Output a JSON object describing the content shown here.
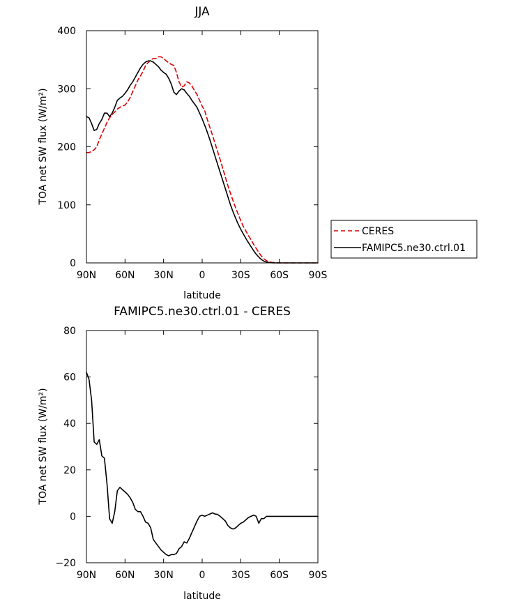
{
  "chart_data": [
    {
      "type": "line",
      "title": "JJA",
      "xlabel": "latitude",
      "ylabel": "TOA net SW flux (W/m²)",
      "xlim": [
        90,
        -90
      ],
      "ylim": [
        0,
        400
      ],
      "xticks": [
        90,
        60,
        30,
        0,
        -30,
        -60,
        -90
      ],
      "xtick_labels": [
        "90N",
        "60N",
        "30N",
        "0",
        "30S",
        "60S",
        "90S"
      ],
      "yticks": [
        0,
        100,
        200,
        300,
        400
      ],
      "ytick_labels": [
        "0",
        "100",
        "200",
        "300",
        "400"
      ],
      "grid": false,
      "legend": "right",
      "series": [
        {
          "name": "CERES",
          "color": "#dd0000",
          "style": "dashed",
          "x": [
            90,
            88,
            86,
            84,
            82,
            80,
            78,
            76,
            74,
            72,
            70,
            68,
            66,
            64,
            62,
            60,
            58,
            56,
            54,
            52,
            50,
            48,
            46,
            44,
            42,
            40,
            38,
            36,
            34,
            32,
            30,
            28,
            26,
            24,
            22,
            20,
            18,
            16,
            14,
            12,
            10,
            8,
            6,
            4,
            2,
            0,
            -2,
            -4,
            -6,
            -8,
            -10,
            -12,
            -14,
            -16,
            -18,
            -20,
            -22,
            -24,
            -26,
            -28,
            -30,
            -32,
            -34,
            -36,
            -38,
            -40,
            -42,
            -44,
            -46,
            -48,
            -50,
            -52,
            -54,
            -56,
            -58,
            -60,
            -62,
            -64,
            -66,
            -68,
            -70,
            -72,
            -74,
            -76,
            -78,
            -80,
            -82,
            -84,
            -86,
            -88,
            -90
          ],
          "y": [
            190,
            190,
            192,
            195,
            200,
            212,
            222,
            232,
            242,
            250,
            255,
            260,
            265,
            268,
            270,
            272,
            277,
            285,
            295,
            305,
            315,
            322,
            330,
            340,
            345,
            350,
            352,
            352,
            355,
            355,
            352,
            348,
            345,
            342,
            340,
            328,
            312,
            303,
            305,
            312,
            310,
            305,
            297,
            290,
            280,
            270,
            262,
            247,
            233,
            220,
            206,
            192,
            178,
            163,
            148,
            133,
            120,
            107,
            95,
            84,
            73,
            63,
            55,
            47,
            40,
            32,
            25,
            18,
            12,
            7,
            4,
            2,
            1,
            0.5,
            0.2,
            0,
            0,
            0,
            0,
            0,
            0,
            0,
            0,
            0,
            0,
            0,
            0,
            0,
            0,
            0,
            0
          ]
        },
        {
          "name": "FAMIPC5.ne30.ctrl.01",
          "color": "#000000",
          "style": "solid",
          "x": [
            90,
            88,
            86,
            84,
            82,
            80,
            78,
            76,
            74,
            72,
            70,
            68,
            66,
            64,
            62,
            60,
            58,
            56,
            54,
            52,
            50,
            48,
            46,
            44,
            42,
            40,
            38,
            36,
            34,
            32,
            30,
            28,
            26,
            24,
            22,
            20,
            18,
            16,
            14,
            12,
            10,
            8,
            6,
            4,
            2,
            0,
            -2,
            -4,
            -6,
            -8,
            -10,
            -12,
            -14,
            -16,
            -18,
            -20,
            -22,
            -24,
            -26,
            -28,
            -30,
            -32,
            -34,
            -36,
            -38,
            -40,
            -42,
            -44,
            -46,
            -48,
            -50,
            -52,
            -54,
            -56,
            -58,
            -60,
            -62,
            -64,
            -66,
            -68,
            -70,
            -72,
            -74,
            -76,
            -78,
            -80,
            -82,
            -84,
            -86,
            -88,
            -90
          ],
          "y": [
            252,
            250,
            240,
            228,
            230,
            240,
            247,
            258,
            258,
            252,
            258,
            268,
            280,
            284,
            287,
            292,
            298,
            306,
            312,
            320,
            328,
            336,
            342,
            346,
            348,
            348,
            346,
            342,
            338,
            332,
            328,
            325,
            318,
            308,
            294,
            290,
            296,
            300,
            298,
            292,
            287,
            280,
            274,
            268,
            258,
            248,
            237,
            225,
            212,
            198,
            184,
            170,
            156,
            142,
            128,
            114,
            100,
            88,
            77,
            67,
            58,
            50,
            42,
            35,
            28,
            21,
            15,
            10,
            6,
            3,
            1.5,
            0.5,
            0.2,
            0,
            0,
            0,
            0,
            0,
            0,
            0,
            0,
            0,
            0,
            0,
            0,
            0,
            0,
            0,
            0,
            0,
            0
          ]
        }
      ]
    },
    {
      "type": "line",
      "title": "FAMIPC5.ne30.ctrl.01 - CERES",
      "xlabel": "latitude",
      "ylabel": "TOA net SW flux (W/m²)",
      "xlim": [
        90,
        -90
      ],
      "ylim": [
        -20,
        80
      ],
      "xticks": [
        90,
        60,
        30,
        0,
        -30,
        -60,
        -90
      ],
      "xtick_labels": [
        "90N",
        "60N",
        "30N",
        "0",
        "30S",
        "60S",
        "90S"
      ],
      "yticks": [
        -20,
        0,
        20,
        40,
        60,
        80
      ],
      "ytick_labels": [
        "−20",
        "0",
        "20",
        "40",
        "60",
        "80"
      ],
      "grid": false,
      "series": [
        {
          "name": "FAMIPC5.ne30.ctrl.01 - CERES",
          "color": "#000000",
          "style": "solid",
          "x": [
            90,
            88,
            86,
            84,
            82,
            80,
            78,
            76,
            74,
            72,
            70,
            68,
            66,
            64,
            62,
            60,
            58,
            56,
            54,
            52,
            50,
            48,
            46,
            44,
            42,
            40,
            38,
            36,
            34,
            32,
            30,
            28,
            26,
            24,
            22,
            20,
            18,
            16,
            14,
            12,
            10,
            8,
            6,
            4,
            2,
            0,
            -2,
            -4,
            -6,
            -8,
            -10,
            -12,
            -14,
            -16,
            -18,
            -20,
            -22,
            -24,
            -26,
            -28,
            -30,
            -32,
            -34,
            -36,
            -38,
            -40,
            -42,
            -44,
            -46,
            -48,
            -50,
            -52,
            -54,
            -56,
            -58,
            -60,
            -62,
            -64,
            -66,
            -68,
            -70,
            -72,
            -74,
            -76,
            -78,
            -80,
            -82,
            -84,
            -86,
            -88,
            -90
          ],
          "y": [
            62,
            59,
            50,
            32,
            31,
            33,
            26,
            25,
            14,
            -1,
            -3,
            2,
            11,
            12.5,
            11.5,
            10.5,
            9.5,
            8,
            6,
            3,
            2,
            2,
            0,
            -2.5,
            -3,
            -5,
            -10,
            -11.5,
            -13,
            -14.5,
            -15.5,
            -16.5,
            -17,
            -16.5,
            -16.5,
            -16,
            -14,
            -13,
            -11,
            -11.5,
            -9.5,
            -7,
            -4.5,
            -2,
            0,
            0.5,
            0,
            0.5,
            1,
            1.5,
            1,
            0.8,
            0,
            -1,
            -2,
            -4,
            -5,
            -5.5,
            -5,
            -4,
            -3,
            -2.5,
            -1.5,
            -0.5,
            0,
            0.5,
            0,
            -3,
            -1,
            -1,
            0,
            0,
            0,
            0,
            0,
            0,
            0,
            0,
            0,
            0,
            0,
            0,
            0,
            0,
            0,
            0,
            0,
            0,
            0,
            0,
            0
          ]
        }
      ]
    }
  ]
}
